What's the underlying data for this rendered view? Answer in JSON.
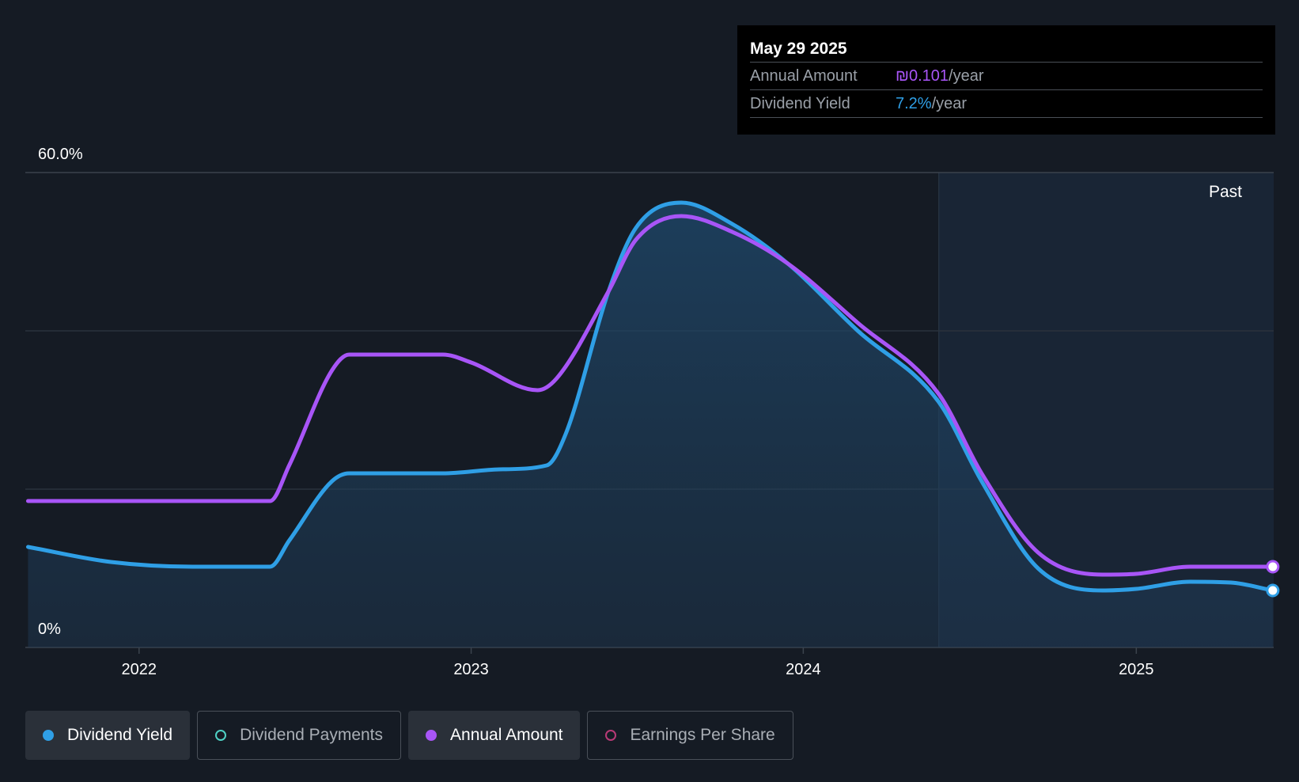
{
  "tooltip": {
    "date": "May 29 2025",
    "rows": [
      {
        "label": "Annual Amount",
        "value": "₪0.101",
        "unit": "/year",
        "color": "#a855f7"
      },
      {
        "label": "Dividend Yield",
        "value": "7.2%",
        "unit": "/year",
        "color": "#2f9fe6"
      }
    ]
  },
  "colors": {
    "background": "#151b24",
    "yield": "#2f9fe6",
    "annual": "#a855f7",
    "payments": "#4fd1c5",
    "eps": "#b83a76"
  },
  "legend": [
    {
      "label": "Dividend Yield",
      "active": true,
      "color": "#2f9fe6",
      "filled": true
    },
    {
      "label": "Dividend Payments",
      "active": false,
      "color": "#4fd1c5",
      "filled": false
    },
    {
      "label": "Annual Amount",
      "active": true,
      "color": "#a855f7",
      "filled": true
    },
    {
      "label": "Earnings Per Share",
      "active": false,
      "color": "#b83a76",
      "filled": false
    }
  ],
  "chart_data": {
    "type": "line",
    "y_top_label": "60.0%",
    "y_bottom_label": "0%",
    "ylim": [
      0,
      60
    ],
    "xlim": [
      "2021-08-29",
      "2025-06-01"
    ],
    "x_ticks": [
      {
        "date": "2022-01-01",
        "label": "2022"
      },
      {
        "date": "2023-01-01",
        "label": "2023"
      },
      {
        "date": "2024-01-01",
        "label": "2024"
      },
      {
        "date": "2025-01-01",
        "label": "2025"
      }
    ],
    "past_region_start": "2024-05-29",
    "past_label": "Past",
    "grid": true,
    "series": [
      {
        "name": "Dividend Yield",
        "color": "#2f9fe6",
        "fill": true,
        "points": [
          [
            "2021-09-01",
            12.7
          ],
          [
            "2021-12-01",
            10.8
          ],
          [
            "2022-03-01",
            10.2
          ],
          [
            "2022-05-25",
            10.2
          ],
          [
            "2022-06-15",
            13.5
          ],
          [
            "2022-08-01",
            21.0
          ],
          [
            "2022-08-20",
            22.0
          ],
          [
            "2022-12-01",
            22.0
          ],
          [
            "2023-02-01",
            22.5
          ],
          [
            "2023-03-25",
            23.0
          ],
          [
            "2023-04-15",
            27.0
          ],
          [
            "2023-06-01",
            45.0
          ],
          [
            "2023-07-01",
            53.0
          ],
          [
            "2023-08-20",
            56.2
          ],
          [
            "2023-10-15",
            53.5
          ],
          [
            "2023-12-15",
            48.5
          ],
          [
            "2024-03-01",
            40.0
          ],
          [
            "2024-05-29",
            31.0
          ],
          [
            "2024-07-15",
            21.0
          ],
          [
            "2024-09-15",
            10.0
          ],
          [
            "2024-11-25",
            7.2
          ],
          [
            "2025-01-01",
            7.4
          ],
          [
            "2025-03-01",
            8.3
          ],
          [
            "2025-04-15",
            8.2
          ],
          [
            "2025-05-31",
            7.2
          ]
        ]
      },
      {
        "name": "Annual Amount",
        "color": "#a855f7",
        "fill": false,
        "points": [
          [
            "2021-09-01",
            18.5
          ],
          [
            "2022-05-25",
            18.5
          ],
          [
            "2022-06-15",
            23.0
          ],
          [
            "2022-08-01",
            35.0
          ],
          [
            "2022-08-20",
            37.0
          ],
          [
            "2022-12-01",
            37.0
          ],
          [
            "2023-01-01",
            36.0
          ],
          [
            "2023-03-15",
            32.5
          ],
          [
            "2023-04-05",
            34.0
          ],
          [
            "2023-06-01",
            45.0
          ],
          [
            "2023-07-01",
            51.5
          ],
          [
            "2023-08-20",
            54.5
          ],
          [
            "2023-10-15",
            52.5
          ],
          [
            "2023-12-15",
            48.5
          ],
          [
            "2024-03-01",
            41.0
          ],
          [
            "2024-05-29",
            32.0
          ],
          [
            "2024-07-15",
            22.0
          ],
          [
            "2024-09-15",
            12.0
          ],
          [
            "2024-11-25",
            9.2
          ],
          [
            "2025-01-01",
            9.3
          ],
          [
            "2025-03-01",
            10.2
          ],
          [
            "2025-05-31",
            10.2
          ]
        ]
      }
    ]
  }
}
